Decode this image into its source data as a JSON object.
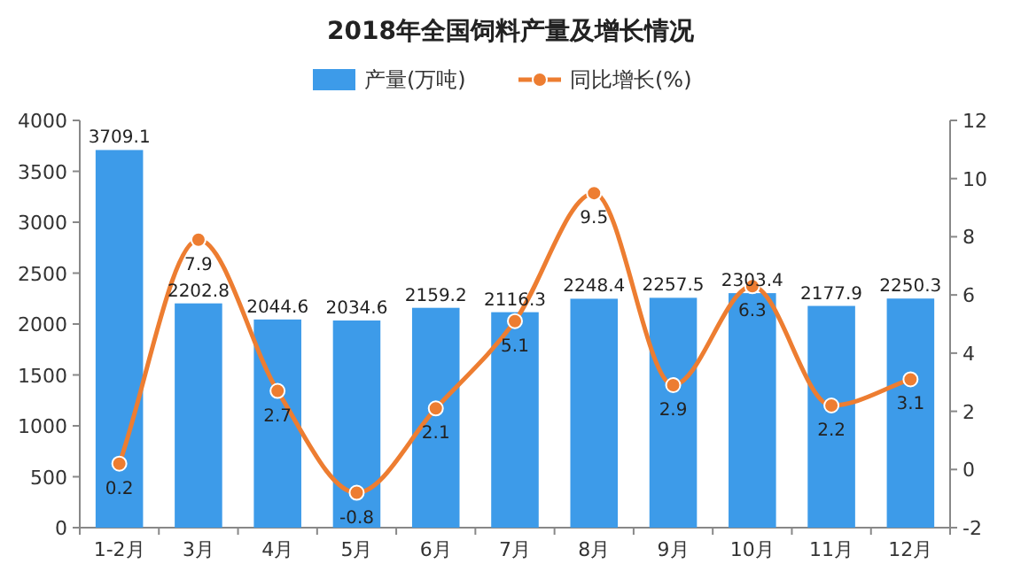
{
  "chart_data": {
    "type": "bar",
    "title": "2018年全国饲料产量及增长情况",
    "categories": [
      "1-2月",
      "3月",
      "4月",
      "5月",
      "6月",
      "7月",
      "8月",
      "9月",
      "10月",
      "11月",
      "12月"
    ],
    "series": [
      {
        "name": "产量(万吨)",
        "color": "#3d9be9",
        "values": [
          3709.1,
          2202.8,
          2044.6,
          2034.6,
          2159.2,
          2116.3,
          2248.4,
          2257.5,
          2303.4,
          2177.9,
          2250.3
        ]
      },
      {
        "name": "同比增长(%)",
        "type": "line",
        "axis": "y2",
        "color": "#ed7d31",
        "values": [
          0.2,
          7.9,
          2.7,
          -0.8,
          2.1,
          5.1,
          9.5,
          2.9,
          6.3,
          2.2,
          3.1
        ]
      }
    ],
    "ylim": [
      0,
      4000
    ],
    "yticks": [
      0,
      500,
      1000,
      1500,
      2000,
      2500,
      3000,
      3500,
      4000
    ],
    "y2lim": [
      -2,
      12
    ],
    "y2ticks": [
      -2,
      0,
      2,
      4,
      6,
      8,
      10,
      12
    ],
    "legend": "top",
    "marker": "circle",
    "data_labels": true
  }
}
